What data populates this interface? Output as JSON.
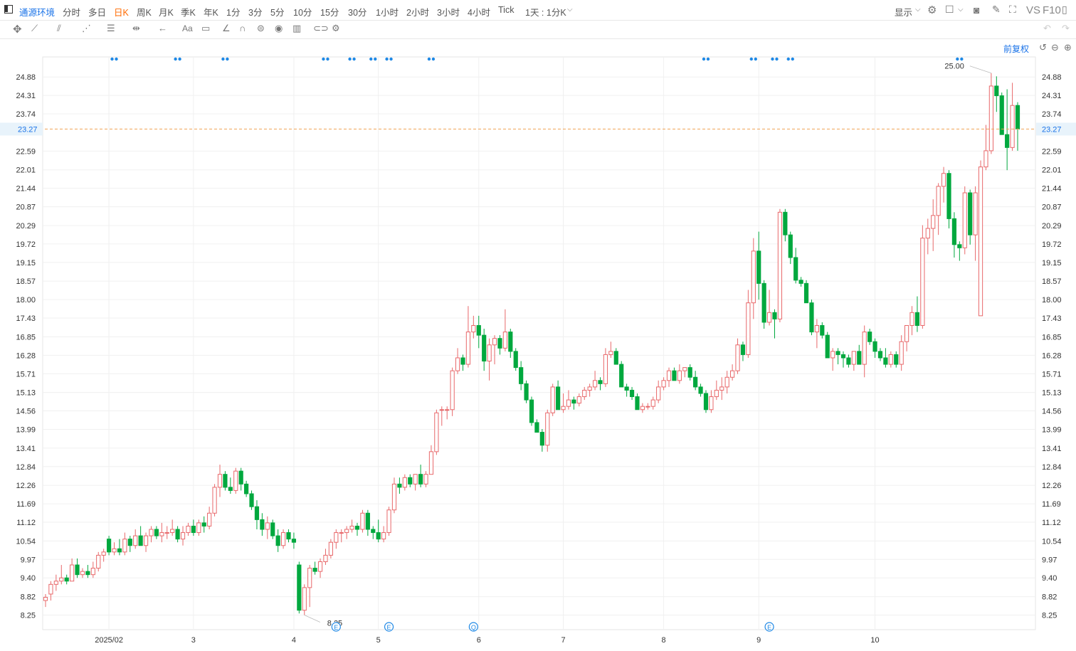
{
  "header": {
    "symbol": "通源环境",
    "periods": [
      "分时",
      "多日",
      "日K",
      "周K",
      "月K",
      "季K",
      "年K",
      "1分",
      "3分",
      "5分",
      "10分",
      "15分",
      "30分",
      "1小时",
      "2小时",
      "3小时",
      "4小时",
      "Tick"
    ],
    "active_period": "日K",
    "custom_period": "1天 : 1分K",
    "display_label": "显示",
    "vs_label": "VS",
    "f10_label": "F10"
  },
  "adjust_label": "前复权",
  "icons": {
    "toolbar": [
      "move-icon",
      "line-icon",
      "channel-icon",
      "pattern-icon",
      "fib-icon",
      "measure-icon",
      "arrow-icon",
      "text-icon",
      "comment-icon",
      "angle-icon",
      "magnet-icon",
      "lock-icon",
      "eye-icon",
      "trash-icon",
      "link-icon",
      "gear-icon"
    ],
    "right": [
      "camera-icon",
      "pen-icon",
      "fullscreen-icon"
    ]
  },
  "colors": {
    "up": "#e8686a",
    "down": "#00a83e",
    "current": "#f0a255",
    "marker": "#1e88e5",
    "grid": "#f0f0f0"
  },
  "chart_data": {
    "type": "candlestick",
    "y_ticks": [
      "8.25",
      "8.82",
      "9.40",
      "9.97",
      "10.54",
      "11.12",
      "11.69",
      "12.26",
      "12.84",
      "13.41",
      "13.99",
      "14.56",
      "15.13",
      "15.71",
      "16.28",
      "16.85",
      "17.43",
      "18.00",
      "18.57",
      "19.15",
      "19.72",
      "20.29",
      "20.87",
      "21.44",
      "22.01",
      "22.59",
      "23.74",
      "24.31",
      "24.88"
    ],
    "ylim": [
      7.8,
      25.5
    ],
    "x_ticks": [
      "2025/02",
      "3",
      "4",
      "5",
      "6",
      "7",
      "8",
      "9",
      "10"
    ],
    "x_tick_index": [
      12,
      28,
      47,
      63,
      82,
      98,
      117,
      135,
      157
    ],
    "current_price": "23.27",
    "high_label": "25.00",
    "low_label": "8.25",
    "event_markers": [
      {
        "i": 55,
        "label": "E"
      },
      {
        "i": 65,
        "label": "E"
      },
      {
        "i": 81,
        "label": "Q"
      },
      {
        "i": 137,
        "label": "E"
      }
    ],
    "dot_markers": [
      13,
      25,
      34,
      53,
      58,
      62,
      65,
      73,
      125,
      134,
      138,
      141,
      173
    ],
    "ohlc": [
      [
        8.7,
        8.9,
        8.5,
        8.8
      ],
      [
        8.9,
        9.3,
        8.7,
        9.2
      ],
      [
        9.2,
        9.5,
        9.0,
        9.3
      ],
      [
        9.3,
        9.8,
        9.2,
        9.4
      ],
      [
        9.4,
        9.5,
        9.2,
        9.3
      ],
      [
        9.3,
        10.0,
        9.3,
        9.8
      ],
      [
        9.8,
        10.0,
        9.4,
        9.5
      ],
      [
        9.5,
        9.7,
        9.4,
        9.6
      ],
      [
        9.6,
        9.8,
        9.4,
        9.5
      ],
      [
        9.5,
        9.9,
        9.4,
        9.7
      ],
      [
        9.7,
        10.2,
        9.6,
        10.1
      ],
      [
        10.1,
        10.3,
        9.9,
        10.2
      ],
      [
        10.6,
        10.7,
        10.1,
        10.2
      ],
      [
        10.2,
        10.5,
        10.1,
        10.3
      ],
      [
        10.3,
        10.6,
        10.1,
        10.2
      ],
      [
        10.2,
        10.8,
        10.1,
        10.6
      ],
      [
        10.6,
        10.7,
        10.2,
        10.4
      ],
      [
        10.4,
        10.9,
        10.3,
        10.7
      ],
      [
        10.7,
        11.0,
        10.5,
        10.4
      ],
      [
        10.4,
        10.8,
        10.2,
        10.7
      ],
      [
        10.7,
        11.0,
        10.5,
        10.9
      ],
      [
        10.9,
        11.0,
        10.6,
        10.7
      ],
      [
        10.7,
        11.1,
        10.5,
        10.8
      ],
      [
        10.8,
        11.0,
        10.6,
        10.8
      ],
      [
        10.8,
        11.2,
        10.7,
        10.9
      ],
      [
        10.9,
        11.0,
        10.5,
        10.6
      ],
      [
        10.6,
        11.0,
        10.4,
        10.8
      ],
      [
        10.8,
        11.1,
        10.7,
        11.0
      ],
      [
        11.0,
        11.2,
        10.7,
        10.8
      ],
      [
        10.8,
        11.2,
        10.7,
        11.1
      ],
      [
        11.1,
        11.3,
        10.8,
        11.0
      ],
      [
        11.0,
        11.6,
        10.9,
        11.4
      ],
      [
        11.4,
        12.3,
        11.3,
        12.2
      ],
      [
        12.2,
        12.9,
        11.9,
        12.6
      ],
      [
        12.6,
        12.7,
        12.1,
        12.2
      ],
      [
        12.2,
        12.5,
        12.0,
        12.1
      ],
      [
        12.1,
        12.8,
        12.0,
        12.7
      ],
      [
        12.7,
        12.8,
        12.1,
        12.3
      ],
      [
        12.3,
        12.4,
        11.9,
        12.0
      ],
      [
        12.0,
        12.1,
        11.5,
        11.6
      ],
      [
        11.6,
        11.8,
        10.9,
        11.2
      ],
      [
        11.2,
        11.4,
        10.7,
        10.9
      ],
      [
        10.9,
        11.3,
        10.6,
        11.1
      ],
      [
        11.1,
        11.2,
        10.6,
        10.7
      ],
      [
        10.7,
        10.9,
        10.2,
        10.4
      ],
      [
        10.4,
        10.9,
        10.3,
        10.8
      ],
      [
        10.8,
        10.9,
        10.5,
        10.6
      ],
      [
        10.6,
        10.8,
        10.3,
        10.5
      ],
      [
        9.8,
        9.9,
        8.3,
        8.4
      ],
      [
        8.4,
        9.2,
        8.25,
        9.1
      ],
      [
        9.1,
        9.8,
        8.5,
        9.7
      ],
      [
        9.7,
        9.9,
        9.5,
        9.6
      ],
      [
        9.6,
        10.0,
        9.4,
        9.9
      ],
      [
        9.9,
        10.3,
        9.8,
        10.1
      ],
      [
        10.1,
        10.6,
        10.0,
        10.5
      ],
      [
        10.5,
        10.9,
        10.3,
        10.8
      ],
      [
        10.8,
        10.9,
        10.5,
        10.8
      ],
      [
        10.8,
        11.0,
        10.6,
        10.9
      ],
      [
        10.9,
        11.2,
        10.8,
        11.0
      ],
      [
        11.0,
        11.1,
        10.7,
        10.9
      ],
      [
        10.9,
        11.5,
        10.8,
        11.4
      ],
      [
        11.4,
        11.5,
        10.7,
        10.9
      ],
      [
        10.9,
        11.0,
        10.6,
        10.8
      ],
      [
        10.8,
        11.2,
        10.5,
        10.6
      ],
      [
        10.6,
        11.0,
        10.5,
        10.8
      ],
      [
        10.8,
        11.6,
        10.7,
        11.5
      ],
      [
        11.5,
        12.5,
        11.4,
        12.3
      ],
      [
        12.3,
        12.5,
        12.0,
        12.2
      ],
      [
        12.2,
        12.6,
        12.1,
        12.5
      ],
      [
        12.5,
        12.6,
        12.2,
        12.3
      ],
      [
        12.3,
        12.6,
        12.1,
        12.6
      ],
      [
        12.6,
        12.9,
        12.2,
        12.3
      ],
      [
        12.3,
        12.7,
        12.2,
        12.6
      ],
      [
        12.6,
        13.5,
        12.6,
        13.3
      ],
      [
        13.3,
        14.6,
        13.2,
        14.5
      ],
      [
        14.6,
        14.7,
        14.1,
        14.6
      ],
      [
        14.6,
        14.7,
        14.3,
        14.6
      ],
      [
        14.6,
        15.9,
        14.4,
        15.8
      ],
      [
        15.8,
        16.5,
        15.7,
        16.2
      ],
      [
        16.2,
        16.3,
        15.8,
        16.0
      ],
      [
        16.0,
        17.8,
        15.9,
        17.0
      ],
      [
        17.0,
        17.5,
        16.8,
        17.2
      ],
      [
        17.2,
        17.5,
        16.5,
        16.9
      ],
      [
        16.9,
        17.1,
        15.8,
        16.1
      ],
      [
        16.1,
        16.8,
        15.5,
        16.6
      ],
      [
        16.6,
        16.9,
        16.0,
        16.8
      ],
      [
        16.8,
        16.9,
        16.3,
        16.5
      ],
      [
        16.5,
        17.7,
        16.4,
        17.0
      ],
      [
        17.0,
        17.1,
        16.2,
        16.4
      ],
      [
        16.4,
        16.5,
        15.8,
        15.9
      ],
      [
        15.9,
        16.1,
        15.2,
        15.4
      ],
      [
        15.4,
        15.5,
        14.8,
        14.9
      ],
      [
        14.9,
        15.0,
        14.1,
        14.2
      ],
      [
        14.2,
        14.3,
        13.9,
        13.9
      ],
      [
        13.9,
        14.0,
        13.3,
        13.5
      ],
      [
        13.5,
        14.6,
        13.3,
        14.5
      ],
      [
        14.5,
        15.4,
        14.4,
        15.3
      ],
      [
        15.3,
        15.5,
        14.6,
        14.6
      ],
      [
        14.6,
        15.1,
        14.5,
        14.7
      ],
      [
        14.7,
        15.2,
        14.6,
        14.9
      ],
      [
        14.9,
        15.0,
        14.6,
        14.8
      ],
      [
        14.8,
        15.1,
        14.7,
        15.0
      ],
      [
        15.0,
        15.3,
        14.9,
        15.2
      ],
      [
        15.2,
        15.4,
        15.0,
        15.3
      ],
      [
        15.3,
        15.8,
        15.2,
        15.5
      ],
      [
        15.5,
        15.6,
        15.2,
        15.4
      ],
      [
        15.4,
        16.5,
        15.3,
        16.3
      ],
      [
        16.3,
        16.7,
        16.2,
        16.4
      ],
      [
        16.4,
        16.5,
        16.0,
        16.0
      ],
      [
        16.0,
        16.1,
        15.3,
        15.3
      ],
      [
        15.3,
        15.4,
        15.0,
        15.2
      ],
      [
        15.2,
        15.3,
        14.9,
        15.0
      ],
      [
        15.0,
        15.1,
        14.6,
        14.6
      ],
      [
        14.6,
        14.8,
        14.5,
        14.7
      ],
      [
        14.7,
        14.8,
        14.6,
        14.7
      ],
      [
        14.7,
        15.0,
        14.6,
        14.9
      ],
      [
        14.9,
        15.5,
        14.8,
        15.3
      ],
      [
        15.3,
        15.6,
        15.2,
        15.5
      ],
      [
        15.5,
        15.9,
        15.3,
        15.8
      ],
      [
        15.8,
        15.9,
        15.5,
        15.5
      ],
      [
        15.5,
        16.0,
        15.4,
        15.8
      ],
      [
        15.8,
        15.9,
        15.6,
        15.9
      ],
      [
        15.9,
        16.0,
        15.5,
        15.6
      ],
      [
        15.6,
        15.8,
        15.2,
        15.3
      ],
      [
        15.3,
        15.4,
        15.0,
        15.1
      ],
      [
        15.1,
        15.2,
        14.5,
        14.6
      ],
      [
        14.6,
        15.2,
        14.5,
        15.0
      ],
      [
        15.0,
        15.5,
        14.9,
        15.2
      ],
      [
        15.2,
        15.6,
        14.9,
        15.3
      ],
      [
        15.3,
        15.8,
        15.1,
        15.6
      ],
      [
        15.6,
        16.0,
        15.5,
        15.8
      ],
      [
        15.8,
        16.8,
        15.7,
        16.6
      ],
      [
        16.6,
        16.7,
        16.1,
        16.3
      ],
      [
        16.3,
        18.3,
        16.2,
        17.9
      ],
      [
        17.9,
        19.9,
        17.4,
        19.5
      ],
      [
        19.5,
        20.1,
        18.0,
        18.5
      ],
      [
        18.5,
        18.6,
        17.1,
        17.3
      ],
      [
        17.3,
        18.3,
        17.2,
        17.6
      ],
      [
        17.6,
        17.7,
        16.8,
        17.4
      ],
      [
        17.4,
        20.8,
        17.3,
        20.7
      ],
      [
        20.7,
        20.8,
        19.8,
        20.0
      ],
      [
        20.0,
        20.1,
        19.1,
        19.3
      ],
      [
        19.3,
        19.6,
        18.5,
        18.6
      ],
      [
        18.6,
        18.7,
        18.4,
        18.5
      ],
      [
        18.5,
        18.6,
        17.9,
        17.9
      ],
      [
        17.9,
        18.0,
        16.9,
        17.0
      ],
      [
        17.0,
        17.4,
        16.5,
        17.2
      ],
      [
        17.2,
        17.3,
        16.8,
        16.9
      ],
      [
        16.9,
        17.0,
        16.2,
        16.2
      ],
      [
        16.2,
        16.5,
        15.8,
        16.4
      ],
      [
        16.4,
        16.5,
        16.0,
        16.3
      ],
      [
        16.3,
        16.4,
        15.9,
        16.2
      ],
      [
        16.2,
        16.3,
        15.9,
        16.0
      ],
      [
        16.0,
        16.4,
        15.8,
        16.4
      ],
      [
        16.4,
        16.6,
        16.1,
        16.0
      ],
      [
        16.0,
        17.2,
        15.6,
        17.0
      ],
      [
        17.0,
        17.1,
        16.6,
        16.7
      ],
      [
        16.7,
        16.8,
        16.2,
        16.4
      ],
      [
        16.4,
        16.5,
        16.1,
        16.2
      ],
      [
        16.2,
        16.5,
        15.9,
        16.0
      ],
      [
        16.0,
        16.4,
        15.9,
        16.3
      ],
      [
        16.3,
        16.4,
        15.9,
        16.0
      ],
      [
        16.0,
        16.9,
        15.8,
        16.7
      ],
      [
        16.7,
        17.2,
        16.4,
        17.2
      ],
      [
        17.2,
        17.8,
        16.9,
        17.6
      ],
      [
        17.6,
        18.1,
        17.0,
        17.2
      ],
      [
        17.2,
        20.3,
        17.1,
        19.9
      ],
      [
        19.9,
        20.5,
        19.4,
        20.2
      ],
      [
        20.2,
        21.1,
        19.5,
        20.6
      ],
      [
        20.6,
        21.6,
        20.0,
        21.5
      ],
      [
        21.5,
        22.1,
        21.0,
        21.9
      ],
      [
        21.9,
        22.0,
        20.2,
        20.5
      ],
      [
        20.5,
        20.7,
        19.3,
        19.7
      ],
      [
        19.7,
        19.8,
        19.2,
        19.6
      ],
      [
        19.6,
        21.5,
        19.4,
        21.3
      ],
      [
        21.3,
        21.4,
        19.7,
        20.0
      ],
      [
        20.0,
        21.5,
        19.2,
        21.3
      ],
      [
        17.5,
        22.3,
        17.5,
        22.1
      ],
      [
        22.1,
        23.4,
        22.0,
        22.6
      ],
      [
        22.6,
        25.0,
        22.5,
        24.6
      ],
      [
        24.6,
        24.9,
        23.8,
        24.3
      ],
      [
        24.3,
        24.4,
        23.2,
        23.1
      ],
      [
        23.1,
        24.5,
        22.0,
        22.7
      ],
      [
        22.7,
        24.7,
        22.6,
        24.0
      ],
      [
        24.0,
        24.1,
        22.6,
        23.27
      ]
    ]
  }
}
